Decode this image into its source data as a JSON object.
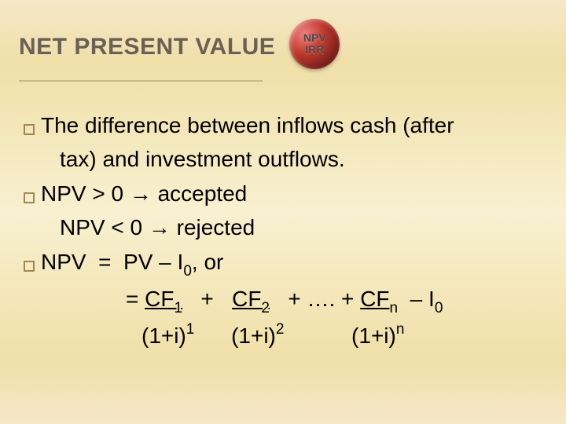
{
  "title": "NET PRESENT VALUE",
  "badge": {
    "line1": "NPV",
    "line2": "IRR"
  },
  "body": {
    "l1a": "The difference between inflows cash (after",
    "l1b": "tax) and investment outflows.",
    "l2a": "NPV > 0 → accepted",
    "l2b": "NPV < 0 → rejected",
    "l3a_pre": "NPV  =  PV – I",
    "l3a_sub": "0",
    "l3a_post": ", or",
    "l3b_eq": "= ",
    "l3b_cf1": "CF",
    "l3b_s1": "1",
    "l3b_plus1": "   +   ",
    "l3b_cf2": "CF",
    "l3b_s2": "2",
    "l3b_plus2": "   + …. + ",
    "l3b_cfn": "CF",
    "l3b_sn": "n",
    "l3b_minus": "  – I",
    "l3b_s0": "0",
    "l3c_d1a": "(1+i)",
    "l3c_d1b": "1",
    "l3c_sp1": "      ",
    "l3c_d2a": "(1+i)",
    "l3c_d2b": "2",
    "l3c_sp2": "           ",
    "l3c_dna": "(1+i)",
    "l3c_dnb": "n"
  },
  "colors": {
    "title": "#6b6055",
    "underline": "#c9b98a",
    "bullet_border": "#a08850",
    "text": "#000000",
    "bg_top": "#f5e8c8",
    "bg_mid": "#f8f0d0"
  }
}
